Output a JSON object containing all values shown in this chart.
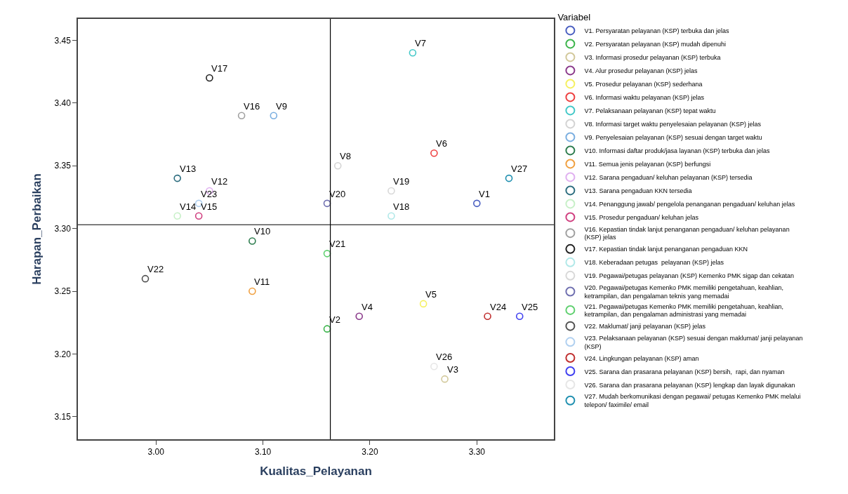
{
  "chart_data": {
    "type": "scatter",
    "xlabel": "Kualitas_Pelayanan",
    "ylabel": "Harapan_Perbaikan",
    "legend_title": "Variabel",
    "legend": "right",
    "grid": false,
    "marker": "circle",
    "xlim": [
      2.927,
      3.372
    ],
    "ylim": [
      3.132,
      3.467
    ],
    "xticks": [
      {
        "value": 3.0,
        "label": "3.00"
      },
      {
        "value": 3.1,
        "label": "3.10"
      },
      {
        "value": 3.2,
        "label": "3.20"
      },
      {
        "value": 3.3,
        "label": "3.30"
      }
    ],
    "yticks": [
      {
        "value": 3.15,
        "label": "3.15"
      },
      {
        "value": 3.2,
        "label": "3.20"
      },
      {
        "value": 3.25,
        "label": "3.25"
      },
      {
        "value": 3.3,
        "label": "3.30"
      },
      {
        "value": 3.35,
        "label": "3.35"
      },
      {
        "value": 3.4,
        "label": "3.40"
      },
      {
        "value": 3.45,
        "label": "3.45"
      }
    ],
    "ref_lines": [
      {
        "axis": "x",
        "value": 3.163,
        "color": "#000000"
      },
      {
        "axis": "y",
        "value": 3.303,
        "color": "#000000"
      }
    ],
    "series": [
      {
        "name": "V1. Persyaratan pelayanan (KSP) terbuka dan jelas",
        "color": "#4a5fc1",
        "x": [
          3.3
        ],
        "values": [
          3.32
        ]
      },
      {
        "name": "V2. Persyaratan pelayanan (KSP) mudah dipenuhi",
        "color": "#3cb44b",
        "x": [
          3.16
        ],
        "values": [
          3.22
        ]
      },
      {
        "name": "V3. Informasi prosedur pelayanan (KSP) terbuka",
        "color": "#d2c89a",
        "x": [
          3.27
        ],
        "values": [
          3.18
        ]
      },
      {
        "name": "V4. Alur prosedur pelayanan (KSP) jelas",
        "color": "#8b3a8b",
        "x": [
          3.19
        ],
        "values": [
          3.23
        ]
      },
      {
        "name": "V5. Prosedur pelayanan (KSP) sederhana",
        "color": "#f5f060",
        "x": [
          3.25
        ],
        "values": [
          3.24
        ]
      },
      {
        "name": "V6. Informasi waktu pelayanan (KSP) jelas",
        "color": "#ee4040",
        "x": [
          3.26
        ],
        "values": [
          3.36
        ]
      },
      {
        "name": "V7. Pelaksanaan pelayanan (KSP) tepat waktu",
        "color": "#44c8c8",
        "x": [
          3.24
        ],
        "values": [
          3.44
        ]
      },
      {
        "name": "V8. Informasi target waktu penyelesaian pelayanan (KSP) jelas",
        "color": "#d3d3d3",
        "x": [
          3.17
        ],
        "values": [
          3.35
        ]
      },
      {
        "name": "V9. Penyelesaian pelayanan (KSP) sesuai dengan target waktu",
        "color": "#7aaee0",
        "x": [
          3.11
        ],
        "values": [
          3.39
        ]
      },
      {
        "name": "V10. Informasi daftar produk/jasa layanan (KSP) terbuka dan jelas",
        "color": "#2e7d4f",
        "x": [
          3.09
        ],
        "values": [
          3.29
        ]
      },
      {
        "name": "V11. Semua jenis pelayanan (KSP) berfungsi",
        "color": "#f0a040",
        "x": [
          3.09
        ],
        "values": [
          3.25
        ]
      },
      {
        "name": "V12. Sarana pengaduan/ keluhan pelayanan (KSP) tersedia",
        "color": "#e0b0f0",
        "x": [
          3.05
        ],
        "values": [
          3.33
        ]
      },
      {
        "name": "V13. Sarana pengaduan KKN tersedia",
        "color": "#2e6e80",
        "x": [
          3.02
        ],
        "values": [
          3.34
        ]
      },
      {
        "name": "V14. Penanggung jawab/ pengelola penanganan pengaduan/ keluhan jelas",
        "color": "#c8f0c8",
        "x": [
          3.02
        ],
        "values": [
          3.31
        ]
      },
      {
        "name": "V15. Prosedur pengaduan/ keluhan jelas",
        "color": "#d04080",
        "x": [
          3.04
        ],
        "values": [
          3.31
        ]
      },
      {
        "name": "V16. Kepastian tindak lanjut penanganan pengaduan/ keluhan pelayanan (KSP) jelas",
        "color": "#a0a0a0",
        "x": [
          3.08
        ],
        "values": [
          3.39
        ]
      },
      {
        "name": "V17. Kepastian tindak lanjut penanganan pengaduan KKN",
        "color": "#202020",
        "x": [
          3.05
        ],
        "values": [
          3.42
        ]
      },
      {
        "name": "V18. Keberadaan petugas  pelayanan (KSP) jelas",
        "color": "#b0e8e8",
        "x": [
          3.22
        ],
        "values": [
          3.31
        ]
      },
      {
        "name": "V19. Pegawai/petugas pelayanan (KSP) Kemenko PMK sigap dan cekatan",
        "color": "#d8d8d8",
        "x": [
          3.22
        ],
        "values": [
          3.33
        ]
      },
      {
        "name": "V20. Pegawai/petugas Kemenko PMK memiliki pengetahuan, keahlian, ketrampilan, dan pengalaman teknis yang memadai",
        "color": "#7070b0",
        "x": [
          3.16
        ],
        "values": [
          3.32
        ]
      },
      {
        "name": "V21. Pegawai/petugas Kemenko PMK memiliki pengetahuan, keahlian, ketrampilan, dan pengalaman administrasi yang memadai",
        "color": "#60d070",
        "x": [
          3.16
        ],
        "values": [
          3.28
        ]
      },
      {
        "name": "V22. Maklumat/ janji pelayanan (KSP) jelas",
        "color": "#505050",
        "x": [
          2.99
        ],
        "values": [
          3.26
        ]
      },
      {
        "name": "V23. Pelaksanaan pelayanan (KSP) sesuai dengan maklumat/ janji pelayanan (KSP)",
        "color": "#b0d0f0",
        "x": [
          3.04
        ],
        "values": [
          3.32
        ]
      },
      {
        "name": "V24. Lingkungan pelayanan (KSP) aman",
        "color": "#c03030",
        "x": [
          3.31
        ],
        "values": [
          3.23
        ]
      },
      {
        "name": "V25. Sarana dan prasarana pelayanan (KSP) bersih,  rapi, dan nyaman",
        "color": "#4040f0",
        "x": [
          3.34
        ],
        "values": [
          3.23
        ]
      },
      {
        "name": "V26. Sarana dan prasarana pelayanan (KSP) lengkap dan layak digunakan",
        "color": "#e6e6e6",
        "x": [
          3.26
        ],
        "values": [
          3.19
        ]
      },
      {
        "name": "V27. Mudah berkomunikasi dengan pegawai/ petugas Kemenko PMK melalui telepon/ faximile/ email",
        "color": "#2090b0",
        "x": [
          3.33
        ],
        "values": [
          3.34
        ]
      }
    ],
    "annotations": [
      {
        "text": "V1",
        "x": 3.3,
        "y": 3.32
      },
      {
        "text": "V2",
        "x": 3.16,
        "y": 3.22
      },
      {
        "text": "V3",
        "x": 3.27,
        "y": 3.18
      },
      {
        "text": "V4",
        "x": 3.19,
        "y": 3.23
      },
      {
        "text": "V5",
        "x": 3.25,
        "y": 3.24
      },
      {
        "text": "V6",
        "x": 3.26,
        "y": 3.36
      },
      {
        "text": "V7",
        "x": 3.24,
        "y": 3.44
      },
      {
        "text": "V8",
        "x": 3.17,
        "y": 3.35
      },
      {
        "text": "V9",
        "x": 3.11,
        "y": 3.39
      },
      {
        "text": "V10",
        "x": 3.09,
        "y": 3.29
      },
      {
        "text": "V11",
        "x": 3.09,
        "y": 3.25
      },
      {
        "text": "V12",
        "x": 3.05,
        "y": 3.33
      },
      {
        "text": "V13",
        "x": 3.02,
        "y": 3.34
      },
      {
        "text": "V14",
        "x": 3.02,
        "y": 3.31
      },
      {
        "text": "V15",
        "x": 3.04,
        "y": 3.31
      },
      {
        "text": "V16",
        "x": 3.08,
        "y": 3.39
      },
      {
        "text": "V17",
        "x": 3.05,
        "y": 3.42
      },
      {
        "text": "V18",
        "x": 3.22,
        "y": 3.31
      },
      {
        "text": "V19",
        "x": 3.22,
        "y": 3.33
      },
      {
        "text": "V20",
        "x": 3.16,
        "y": 3.32
      },
      {
        "text": "V21",
        "x": 3.16,
        "y": 3.28
      },
      {
        "text": "V22",
        "x": 2.99,
        "y": 3.26
      },
      {
        "text": "V23",
        "x": 3.04,
        "y": 3.32
      },
      {
        "text": "V24",
        "x": 3.31,
        "y": 3.23
      },
      {
        "text": "V25",
        "x": 3.34,
        "y": 3.23
      },
      {
        "text": "V26",
        "x": 3.26,
        "y": 3.19
      },
      {
        "text": "V27",
        "x": 3.33,
        "y": 3.34
      }
    ]
  }
}
